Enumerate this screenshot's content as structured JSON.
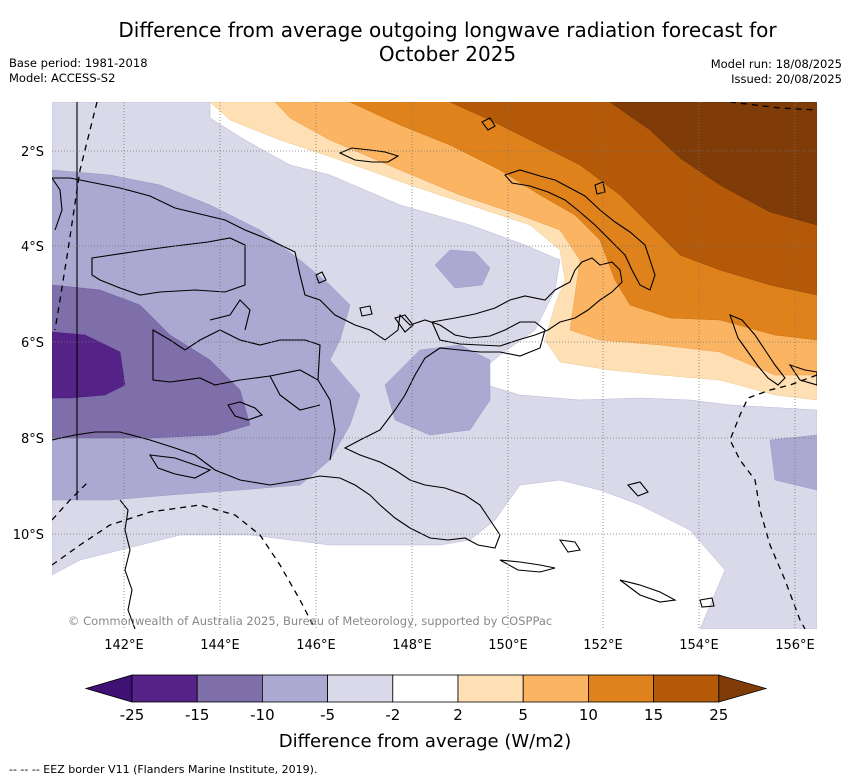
{
  "title": "Difference from average outgoing longwave radiation forecast for October 2025",
  "meta": {
    "base_period": "Base period: 1981-2018",
    "model": "Model: ACCESS-S2",
    "model_run": "Model run: 18/08/2025",
    "issued": "Issued: 20/08/2025"
  },
  "map": {
    "lat_labels": [
      "2°S",
      "4°S",
      "6°S",
      "8°S",
      "10°S"
    ],
    "lon_labels": [
      "142°E",
      "144°E",
      "146°E",
      "148°E",
      "150°E",
      "152°E",
      "154°E",
      "156°E"
    ],
    "copyright": "© Commonwealth of Australia 2025, Bureau of Meteorology, supported by COSPPac"
  },
  "colorbar": {
    "labels": [
      "-25",
      "-15",
      "-10",
      "-5",
      "-2",
      "2",
      "5",
      "10",
      "15",
      "25"
    ],
    "colors": [
      "#3f1174",
      "#552287",
      "#7e6eaa",
      "#aba8d1",
      "#d9d9ea",
      "#ffffff",
      "#fee0b4",
      "#fbb462",
      "#e0821b",
      "#b35908",
      "#7f3b08"
    ],
    "title": "Difference from average (W/m2)"
  },
  "footer": "-- -- -- EEZ border V11 (Flanders Marine Institute, 2019)."
}
